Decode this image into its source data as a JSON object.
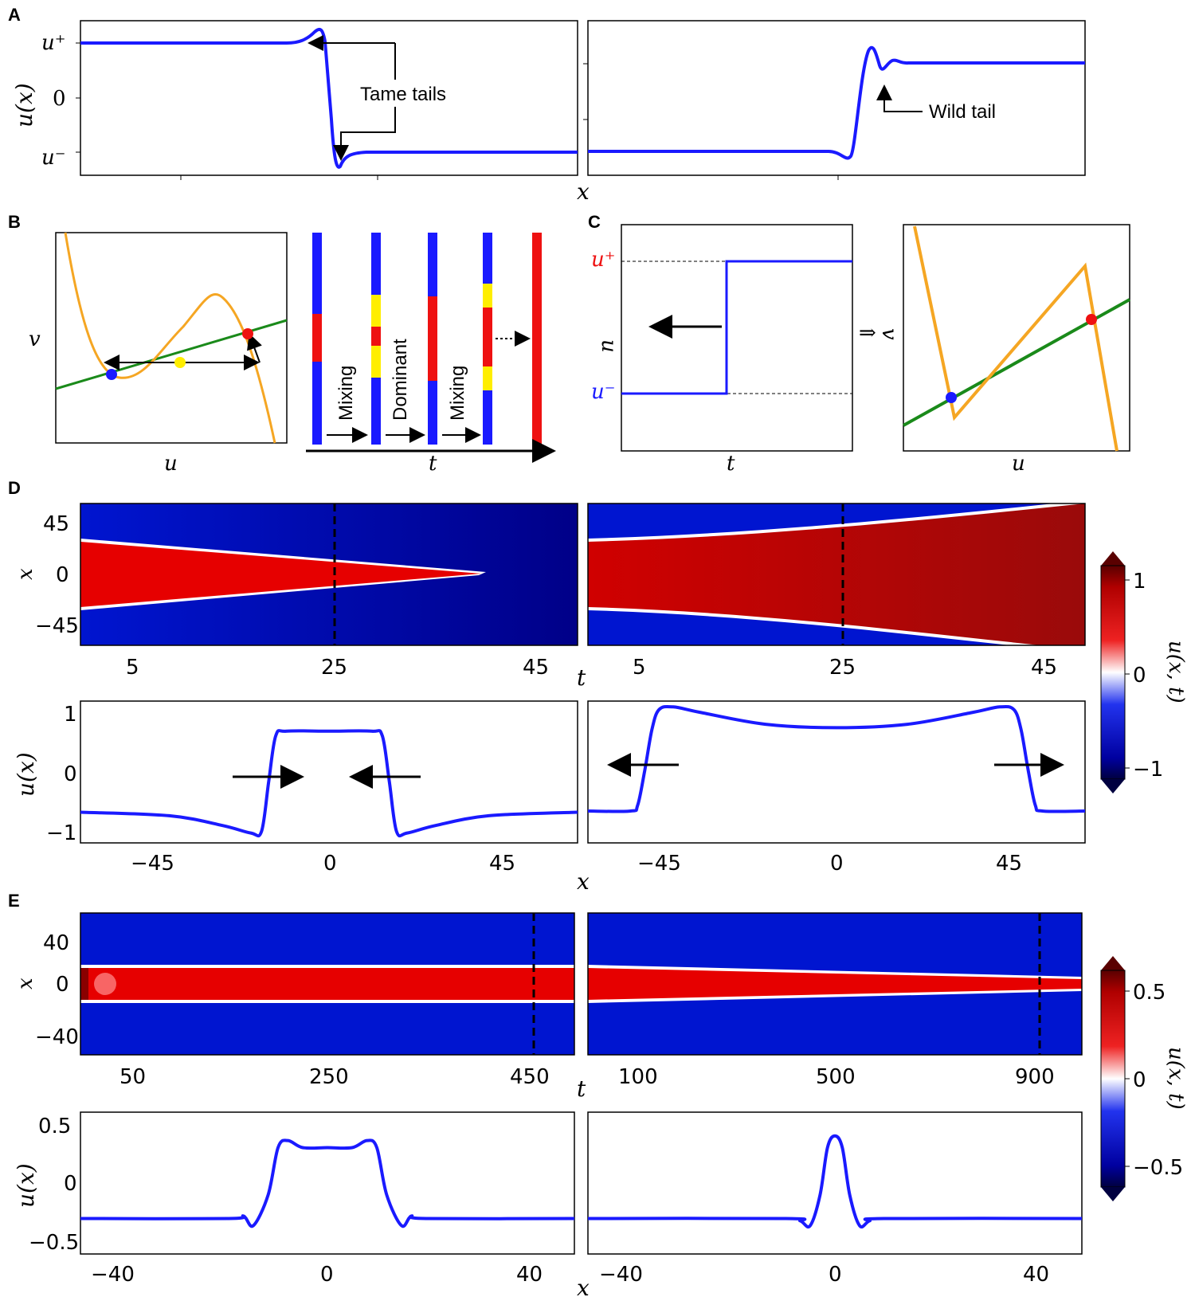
{
  "panels": {
    "A": "A",
    "B": "B",
    "C": "C",
    "D": "D",
    "E": "E"
  },
  "chart_data": [
    {
      "id": "A-left",
      "type": "line",
      "panel": "A",
      "xlabel": "x",
      "ylabel": "u(x)",
      "yticks": [
        "u⁺",
        "0",
        "u⁻"
      ],
      "series": [
        {
          "name": "u(x)",
          "color": "#1a1aff",
          "description": "front moving from u+ to u- with overshoot tails",
          "x": [
            0,
            0.3,
            0.42,
            0.45,
            0.48,
            0.5,
            0.52,
            0.54,
            0.56,
            0.6,
            0.7,
            1.0
          ],
          "y": [
            1,
            1,
            1.01,
            1.1,
            1.05,
            0.3,
            -1.0,
            -1.15,
            -1.03,
            -1.0,
            -1.0,
            -1.0
          ]
        }
      ],
      "annotation": "Tame tails"
    },
    {
      "id": "A-right",
      "type": "line",
      "panel": "A",
      "series": [
        {
          "name": "u(x)",
          "color": "#1a1aff",
          "x": [
            0,
            0.48,
            0.5,
            0.52,
            0.54,
            0.56,
            0.58,
            0.6,
            0.62,
            0.64,
            0.7,
            1.0
          ],
          "y": [
            -1,
            -1,
            -1.05,
            -1.1,
            -0.2,
            1.0,
            1.3,
            0.85,
            0.95,
            0.88,
            0.9,
            0.9
          ]
        }
      ],
      "annotation": "Wild tail"
    },
    {
      "id": "B-phase",
      "type": "line",
      "panel": "B",
      "xlabel": "u",
      "ylabel": "v",
      "series": [
        {
          "name": "cubic nullcline",
          "color": "#f5a623"
        },
        {
          "name": "linear nullcline",
          "color": "#1a8a1a"
        }
      ],
      "points": [
        {
          "name": "stable-low",
          "color": "#1a1aff"
        },
        {
          "name": "unstable",
          "color": "#ffee00"
        },
        {
          "name": "stable-high",
          "color": "#ee1111"
        }
      ]
    },
    {
      "id": "B-bars",
      "type": "bar",
      "panel": "B",
      "xlabel": "t",
      "stages": [
        "Mixing",
        "Dominant",
        "Mixing"
      ]
    },
    {
      "id": "C-step",
      "type": "line",
      "panel": "C",
      "xlabel": "t",
      "ylabel": "u",
      "yticks": [
        "u⁺",
        "u⁻"
      ],
      "series": [
        {
          "name": "u(t)",
          "color": "#1a1aff",
          "x": [
            0,
            0.5,
            0.5,
            1.0
          ],
          "y": [
            -1,
            -1,
            1,
            1
          ]
        }
      ]
    },
    {
      "id": "C-phase",
      "type": "line",
      "panel": "C",
      "xlabel": "u",
      "ylabel": "v",
      "arrow": "⇒"
    },
    {
      "id": "D-heat-left",
      "type": "heatmap",
      "panel": "D",
      "xlabel": "t",
      "ylabel": "x",
      "xticks": [
        "5",
        "25",
        "45"
      ],
      "yticks": [
        "45",
        "0",
        "−45"
      ],
      "xlim": [
        0,
        50
      ],
      "ylim": [
        -60,
        60
      ],
      "dashed_t": 25,
      "description": "shrinking domain of u=+1 collapses near t≈40"
    },
    {
      "id": "D-heat-right",
      "type": "heatmap",
      "panel": "D",
      "xticks": [
        "5",
        "25",
        "45"
      ],
      "xlim": [
        0,
        50
      ],
      "ylim": [
        -60,
        60
      ],
      "dashed_t": 25,
      "description": "expanding domain of u=+1"
    },
    {
      "id": "D-colorbar",
      "type": "heatmap",
      "panel": "D",
      "label": "u(x, t)",
      "ticks": [
        "1",
        "0",
        "−1"
      ],
      "range": [
        -1.2,
        1.2
      ]
    },
    {
      "id": "D-line-left",
      "type": "line",
      "panel": "D",
      "xlabel": "x",
      "ylabel": "u(x)",
      "xticks": [
        "−45",
        "0",
        "45"
      ],
      "yticks": [
        "1",
        "0",
        "−1"
      ],
      "xlim": [
        -70,
        70
      ],
      "ylim": [
        -1.25,
        1.2
      ],
      "series": [
        {
          "name": "u(x)",
          "color": "#1a1aff",
          "x": [
            -70,
            -45,
            -30,
            -22,
            -19,
            -17,
            -15,
            -12,
            0,
            12,
            15,
            17,
            19,
            22,
            30,
            45,
            70
          ],
          "y": [
            -0.72,
            -0.78,
            -0.95,
            -1.08,
            -1.05,
            -0.2,
            0.6,
            0.68,
            0.68,
            0.68,
            0.6,
            -0.2,
            -1.05,
            -1.08,
            -0.95,
            -0.78,
            -0.72
          ]
        }
      ]
    },
    {
      "id": "D-line-right",
      "type": "line",
      "panel": "D",
      "xticks": [
        "−45",
        "0",
        "45"
      ],
      "xlim": [
        -70,
        70
      ],
      "ylim": [
        -1.25,
        1.2
      ],
      "series": [
        {
          "name": "u(x)",
          "color": "#1a1aff",
          "x": [
            -70,
            -58,
            -56,
            -54,
            -52,
            -50,
            -46,
            -38,
            -20,
            0,
            20,
            38,
            46,
            50,
            52,
            54,
            56,
            58,
            70
          ],
          "y": [
            -0.7,
            -0.7,
            -0.6,
            0.0,
            0.7,
            1.05,
            1.1,
            1.0,
            0.8,
            0.74,
            0.8,
            1.0,
            1.1,
            1.05,
            0.7,
            0.0,
            -0.6,
            -0.7,
            -0.7
          ]
        }
      ]
    },
    {
      "id": "E-heat-left",
      "type": "heatmap",
      "panel": "E",
      "xlabel": "t",
      "ylabel": "x",
      "xticks": [
        "50",
        "250",
        "450"
      ],
      "yticks": [
        "40",
        "0",
        "−40"
      ],
      "xlim": [
        0,
        500
      ],
      "ylim": [
        -50,
        50
      ],
      "dashed_t": 460,
      "description": "stationary pulse of constant width"
    },
    {
      "id": "E-heat-right",
      "type": "heatmap",
      "panel": "E",
      "xticks": [
        "100",
        "500",
        "900"
      ],
      "xlim": [
        0,
        1000
      ],
      "ylim": [
        -50,
        50
      ],
      "dashed_t": 920,
      "description": "slowly narrowing pulse"
    },
    {
      "id": "E-colorbar",
      "type": "heatmap",
      "panel": "E",
      "label": "u(x, t)",
      "ticks": [
        "0.5",
        "0",
        "−0.5"
      ],
      "range": [
        -0.6,
        0.6
      ]
    },
    {
      "id": "E-line-left",
      "type": "line",
      "panel": "E",
      "xlabel": "x",
      "ylabel": "u(x)",
      "xticks": [
        "−40",
        "0",
        "40"
      ],
      "yticks": [
        "0.5",
        "0",
        "−0.5"
      ],
      "xlim": [
        -50,
        50
      ],
      "ylim": [
        -0.6,
        0.6
      ],
      "series": [
        {
          "name": "u(x)",
          "color": "#1a1aff",
          "x": [
            -50,
            -20,
            -17,
            -15,
            -12,
            -10,
            -8,
            -5,
            0,
            5,
            8,
            10,
            12,
            15,
            17,
            20,
            50
          ],
          "y": [
            -0.3,
            -0.3,
            -0.28,
            -0.36,
            -0.1,
            0.3,
            0.36,
            0.3,
            0.3,
            0.3,
            0.36,
            0.3,
            -0.1,
            -0.36,
            -0.28,
            -0.3,
            -0.3
          ]
        }
      ]
    },
    {
      "id": "E-line-right",
      "type": "line",
      "panel": "E",
      "xticks": [
        "−40",
        "0",
        "40"
      ],
      "xlim": [
        -50,
        50
      ],
      "ylim": [
        -0.6,
        0.6
      ],
      "series": [
        {
          "name": "u(x)",
          "color": "#1a1aff",
          "x": [
            -50,
            -10,
            -7,
            -5,
            -3,
            -1.5,
            0,
            1.5,
            3,
            5,
            7,
            10,
            50
          ],
          "y": [
            -0.3,
            -0.3,
            -0.32,
            -0.36,
            -0.1,
            0.3,
            0.4,
            0.3,
            -0.1,
            -0.36,
            -0.32,
            -0.3,
            -0.3
          ]
        }
      ]
    }
  ]
}
